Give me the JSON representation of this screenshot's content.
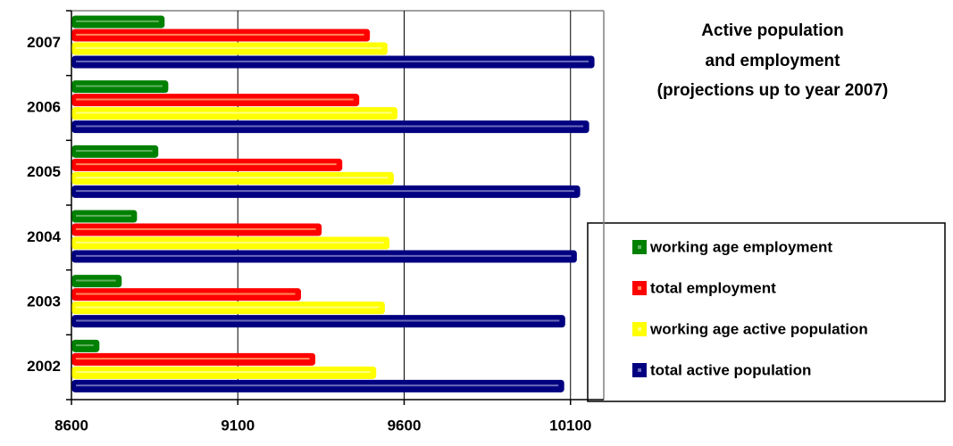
{
  "chart_data": {
    "type": "hbar",
    "title": [
      "Active population",
      "and employment",
      "(projections up to year 2007)"
    ],
    "categories": [
      "2002",
      "2003",
      "2004",
      "2005",
      "2006",
      "2007"
    ],
    "series": [
      {
        "name": "working age employment",
        "color": "#008000",
        "values": [
          8680,
          8747,
          8793,
          8857,
          8887,
          8876
        ]
      },
      {
        "name": "total employment",
        "color": "#ff0000",
        "values": [
          9329,
          9286,
          9348,
          9410,
          9461,
          9493
        ]
      },
      {
        "name": "working age active population",
        "color": "#ffff00",
        "values": [
          9512,
          9538,
          9552,
          9565,
          9576,
          9546
        ]
      },
      {
        "name": "total active population",
        "color": "#000080",
        "values": [
          10077,
          10080,
          10115,
          10125,
          10152,
          10168
        ]
      }
    ],
    "xlim": [
      8600,
      10200
    ],
    "xticks": [
      8600,
      9100,
      9600,
      10100
    ],
    "grid": true,
    "legend": "right"
  }
}
